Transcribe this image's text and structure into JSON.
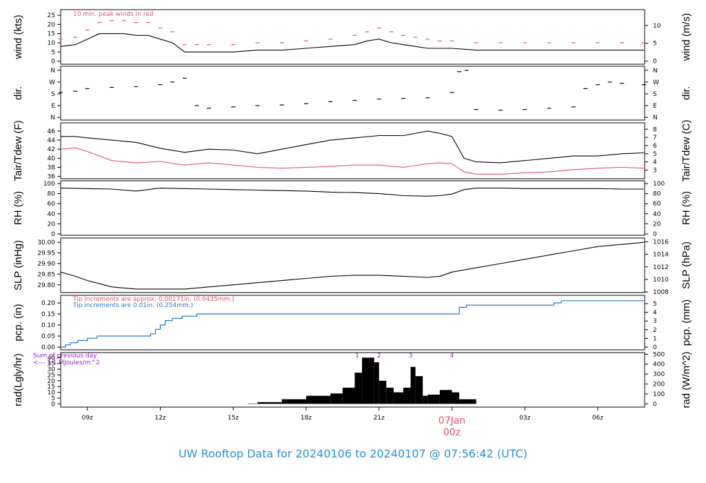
{
  "title": "UW Rooftop Data for 20240106  to  20240107 @ 07:56:42  (UTC)",
  "colors": {
    "frame": "#000000",
    "red": "#df536b",
    "blue": "#2a75c0",
    "purple": "#9b1ec9",
    "title": "#2b8fd1"
  },
  "chart_data": {
    "type": "line",
    "x_axis": {
      "ticks": [
        "09z",
        "12z",
        "15z",
        "18z",
        "21z",
        "00z",
        "03z",
        "06z"
      ],
      "date_label": "07Jan",
      "date_hour": "00z",
      "range_hours_utc": [
        7.9,
        31.93
      ]
    },
    "panels": [
      {
        "id": "wind",
        "left_label": "wind (kts)",
        "right_label": "wind (m/s)",
        "left_ticks": [
          "0",
          "5",
          "10",
          "15",
          "20",
          "25"
        ],
        "left_range": [
          -0.5,
          26.5
        ],
        "right_ticks": [
          "0",
          "5",
          "10"
        ],
        "right_scale": 0.5144,
        "annotation": "10 min. peak winds in red",
        "series": [
          {
            "name": "wind",
            "color": "black",
            "style": "line",
            "x": [
              7.9,
              8.5,
              9,
              9.5,
              10,
              10.5,
              11,
              11.5,
              12,
              12.5,
              13,
              13.5,
              14,
              15,
              16,
              17,
              18,
              19,
              20,
              20.5,
              21,
              21.5,
              22,
              22.5,
              23,
              23.5,
              24,
              25,
              26,
              27,
              28,
              29,
              30,
              31,
              31.9
            ],
            "y": [
              8,
              9,
              12,
              15,
              15,
              15,
              14,
              14,
              12,
              10,
              5,
              5,
              5,
              5,
              6,
              6,
              7,
              8,
              9,
              11,
              12,
              10,
              9,
              8,
              7,
              7,
              7,
              6,
              6,
              6,
              6,
              6,
              6,
              6,
              6
            ]
          },
          {
            "name": "peak",
            "color": "red",
            "style": "dash",
            "x": [
              7.9,
              8.5,
              9,
              9.5,
              10,
              10.5,
              11,
              11.5,
              12,
              12.5,
              13,
              13.5,
              14,
              15,
              16,
              17,
              18,
              19,
              20,
              20.5,
              21,
              21.5,
              22,
              22.5,
              23,
              23.5,
              24,
              25,
              26,
              27,
              28,
              29,
              30,
              31,
              31.9
            ],
            "y": [
              12,
              13,
              17,
              21,
              22,
              22,
              21,
              21,
              18,
              16,
              9,
              9,
              9,
              9,
              10,
              10,
              11,
              12,
              14,
              16,
              18,
              16,
              14,
              13,
              12,
              11,
              11,
              10,
              10,
              10,
              10,
              10,
              10,
              10,
              10
            ]
          }
        ]
      },
      {
        "id": "dir",
        "left_label": "dir.",
        "right_label": "dir.",
        "left_ticks": [
          "N",
          "E",
          "S",
          "W",
          "N"
        ],
        "left_range": [
          -10,
          370
        ],
        "right_ticks": [
          "N",
          "E",
          "S",
          "W",
          "N"
        ],
        "series": [
          {
            "name": "direction",
            "color": "black",
            "style": "dash",
            "x": [
              7.9,
              8.5,
              9,
              10,
              11,
              12,
              12.5,
              13,
              13.5,
              14,
              15,
              16,
              17,
              18,
              19,
              20,
              21,
              22,
              23,
              24,
              24.3,
              24.6,
              25,
              26,
              27,
              28,
              29,
              29.5,
              30,
              30.5,
              31,
              31.9
            ],
            "y": [
              190,
              200,
              220,
              230,
              235,
              250,
              270,
              300,
              90,
              70,
              80,
              90,
              95,
              105,
              120,
              130,
              140,
              145,
              150,
              190,
              350,
              360,
              60,
              55,
              60,
              70,
              80,
              220,
              250,
              270,
              260,
              250
            ]
          }
        ]
      },
      {
        "id": "temp",
        "left_label": "Tair/Tdew (F)",
        "right_label": "Tair/Tdew (C)",
        "left_ticks": [
          "36",
          "38",
          "40",
          "42",
          "44",
          "46"
        ],
        "left_range": [
          35.8,
          47.2
        ],
        "right_ticks": [
          "3",
          "4",
          "5",
          "6",
          "7",
          "8"
        ],
        "series": [
          {
            "name": "Tair",
            "color": "black",
            "style": "line",
            "x": [
              7.9,
              8.5,
              9,
              10,
              11,
              12,
              13,
              14,
              15,
              16,
              17,
              18,
              19,
              20,
              21,
              22,
              23,
              23.5,
              24,
              24.5,
              25,
              26,
              27,
              28,
              29,
              30,
              31,
              31.9
            ],
            "y": [
              44.8,
              44.8,
              44.5,
              44,
              43.5,
              42.2,
              41.3,
              42,
              41.8,
              41,
              42,
              43,
              44,
              44.5,
              45,
              45,
              46,
              45.5,
              44.8,
              40,
              39.2,
              39,
              39.5,
              40,
              40.5,
              40.5,
              41,
              41.2
            ]
          },
          {
            "name": "Tdew",
            "color": "red",
            "style": "line",
            "x": [
              7.9,
              8.5,
              9,
              10,
              11,
              12,
              13,
              14,
              15,
              16,
              17,
              18,
              19,
              20,
              21,
              22,
              23,
              23.5,
              24,
              24.5,
              25,
              26,
              27,
              28,
              29,
              30,
              31,
              31.9
            ],
            "y": [
              42,
              42.3,
              41.5,
              39.5,
              39,
              39.3,
              38.5,
              39,
              38.5,
              38,
              37.8,
              38,
              38.2,
              38.5,
              38.5,
              38,
              38.8,
              39,
              38.8,
              37,
              36.5,
              36.5,
              36.8,
              37,
              37.5,
              37.8,
              38,
              37.8
            ]
          }
        ]
      },
      {
        "id": "rh",
        "left_label": "RH (%)",
        "right_label": "RH (%)",
        "left_ticks": [
          "0",
          "20",
          "40",
          "60",
          "80",
          "100"
        ],
        "left_range": [
          0,
          100
        ],
        "right_ticks": [
          "0",
          "20",
          "40",
          "60",
          "80",
          "100"
        ],
        "series": [
          {
            "name": "RH",
            "color": "black",
            "style": "line",
            "x": [
              7.9,
              9,
              10,
              11,
              12,
              13,
              14,
              15,
              16,
              17,
              18,
              19,
              20,
              21,
              22,
              23,
              23.5,
              24,
              24.5,
              25,
              26,
              27,
              28,
              29,
              30,
              31,
              31.9
            ],
            "y": [
              91,
              90,
              89,
              85,
              91,
              90,
              89,
              88,
              87,
              86,
              85,
              83,
              82,
              80,
              76,
              75,
              76,
              79,
              88,
              91,
              91,
              90,
              90,
              90,
              90,
              89,
              89
            ]
          }
        ]
      },
      {
        "id": "slp",
        "left_label": "SLP (inHg)",
        "right_label": "SLP (hPa)",
        "left_ticks": [
          "29.80",
          "29.85",
          "29.90",
          "29.95",
          "30.00"
        ],
        "left_range": [
          29.77,
          30.007
        ],
        "right_ticks": [
          "1008",
          "1010",
          "1012",
          "1014",
          "1016"
        ],
        "series": [
          {
            "name": "SLP",
            "color": "black",
            "style": "line",
            "x": [
              7.9,
              8.5,
              9,
              10,
              11,
              12,
              13,
              14,
              15,
              16,
              17,
              18,
              19,
              20,
              21,
              22,
              23,
              23.5,
              24,
              25,
              26,
              27,
              28,
              29,
              30,
              31,
              31.9
            ],
            "y": [
              29.86,
              29.84,
              29.82,
              29.79,
              29.78,
              29.78,
              29.78,
              29.79,
              29.8,
              29.81,
              29.82,
              29.83,
              29.84,
              29.845,
              29.845,
              29.84,
              29.835,
              29.84,
              29.86,
              29.88,
              29.9,
              29.92,
              29.94,
              29.96,
              29.98,
              29.99,
              30.0
            ]
          }
        ]
      },
      {
        "id": "pcp",
        "left_label": "pcp. (in)",
        "right_label": "pcp. (mm)",
        "left_ticks": [
          "0.00",
          "0.05",
          "0.10",
          "0.15",
          "0.20"
        ],
        "left_range": [
          -0.003,
          0.222
        ],
        "right_ticks": [
          "0",
          "1",
          "2",
          "3",
          "4",
          "5"
        ],
        "annotation_red": "Tip increments are approx. 0.00171in. (0.0435mm.)",
        "annotation_blue": "Tip increments are 0.01in. (0.254mm.)",
        "series": [
          {
            "name": "precip",
            "color": "blue",
            "style": "step",
            "x": [
              7.9,
              8.1,
              8.3,
              8.6,
              9,
              9.4,
              11.6,
              11.8,
              12,
              12.2,
              12.5,
              12.9,
              13.5,
              14,
              24.3,
              24.6,
              28.2,
              28.5,
              31.9
            ],
            "y": [
              0,
              0.01,
              0.02,
              0.03,
              0.04,
              0.05,
              0.06,
              0.08,
              0.1,
              0.12,
              0.13,
              0.14,
              0.15,
              0.15,
              0.18,
              0.19,
              0.2,
              0.21,
              0.21
            ]
          }
        ]
      },
      {
        "id": "rad",
        "left_label": "rad(Lgly/hr)",
        "right_label": "rad (W/m^2)",
        "left_ticks": [
          "0",
          "5",
          "10",
          "15",
          "20",
          "25",
          "30",
          "35",
          "40"
        ],
        "left_range": [
          -1,
          42
        ],
        "right_ticks": [
          "0",
          "100",
          "200",
          "300",
          "400",
          "500"
        ],
        "annotation": "Sum of previous day",
        "annotation2": "<--- 1.1 MJoules/m^2",
        "markers": [
          "1",
          "2",
          "3",
          "4"
        ],
        "series": [
          {
            "name": "radiation",
            "color": "black",
            "style": "bars",
            "x": [
              15.6,
              16,
              17,
              18,
              19,
              19.5,
              20,
              20.3,
              20.8,
              21,
              21.3,
              21.6,
              22,
              22.3,
              22.5,
              22.8,
              23,
              23.5,
              24,
              24.3,
              25
            ],
            "y": [
              0.3,
              1.5,
              4,
              7,
              9,
              14,
              27,
              40,
              36,
              20,
              14,
              10,
              14,
              32,
              24,
              7,
              8,
              12,
              10,
              4,
              0
            ]
          }
        ]
      }
    ]
  }
}
